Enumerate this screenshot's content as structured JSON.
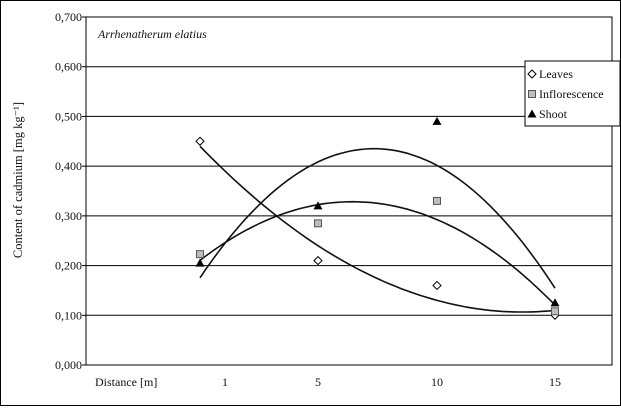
{
  "chart_data": {
    "type": "scatter",
    "title": "Arrhenatherum elatius",
    "xlabel": "Distance [m]",
    "ylabel": "Content of cadmium  [mg kg⁻¹]",
    "ylim": [
      0,
      0.7
    ],
    "y_ticks": [
      "0,000",
      "0,100",
      "0,200",
      "0,300",
      "0,400",
      "0,500",
      "0,600",
      "0,700"
    ],
    "x_ticks": [
      "1",
      "5",
      "10",
      "15"
    ],
    "grid": true,
    "legend_position": "right",
    "series": [
      {
        "name": "Leaves",
        "marker": "diamond",
        "x": [
          1,
          5,
          10,
          15
        ],
        "values": [
          0.45,
          0.21,
          0.16,
          0.1
        ]
      },
      {
        "name": "Inflorescence",
        "marker": "square",
        "x": [
          1,
          5,
          10,
          15
        ],
        "values": [
          0.223,
          0.285,
          0.33,
          0.108
        ]
      },
      {
        "name": "Shoot",
        "marker": "triangle",
        "x": [
          1,
          5,
          10,
          15
        ],
        "values": [
          0.205,
          0.32,
          0.49,
          0.125
        ]
      }
    ],
    "colors": {
      "marker": "#000000",
      "gridline": "#000000",
      "square_fill": "#bdbdbd",
      "line": "#111111"
    }
  }
}
